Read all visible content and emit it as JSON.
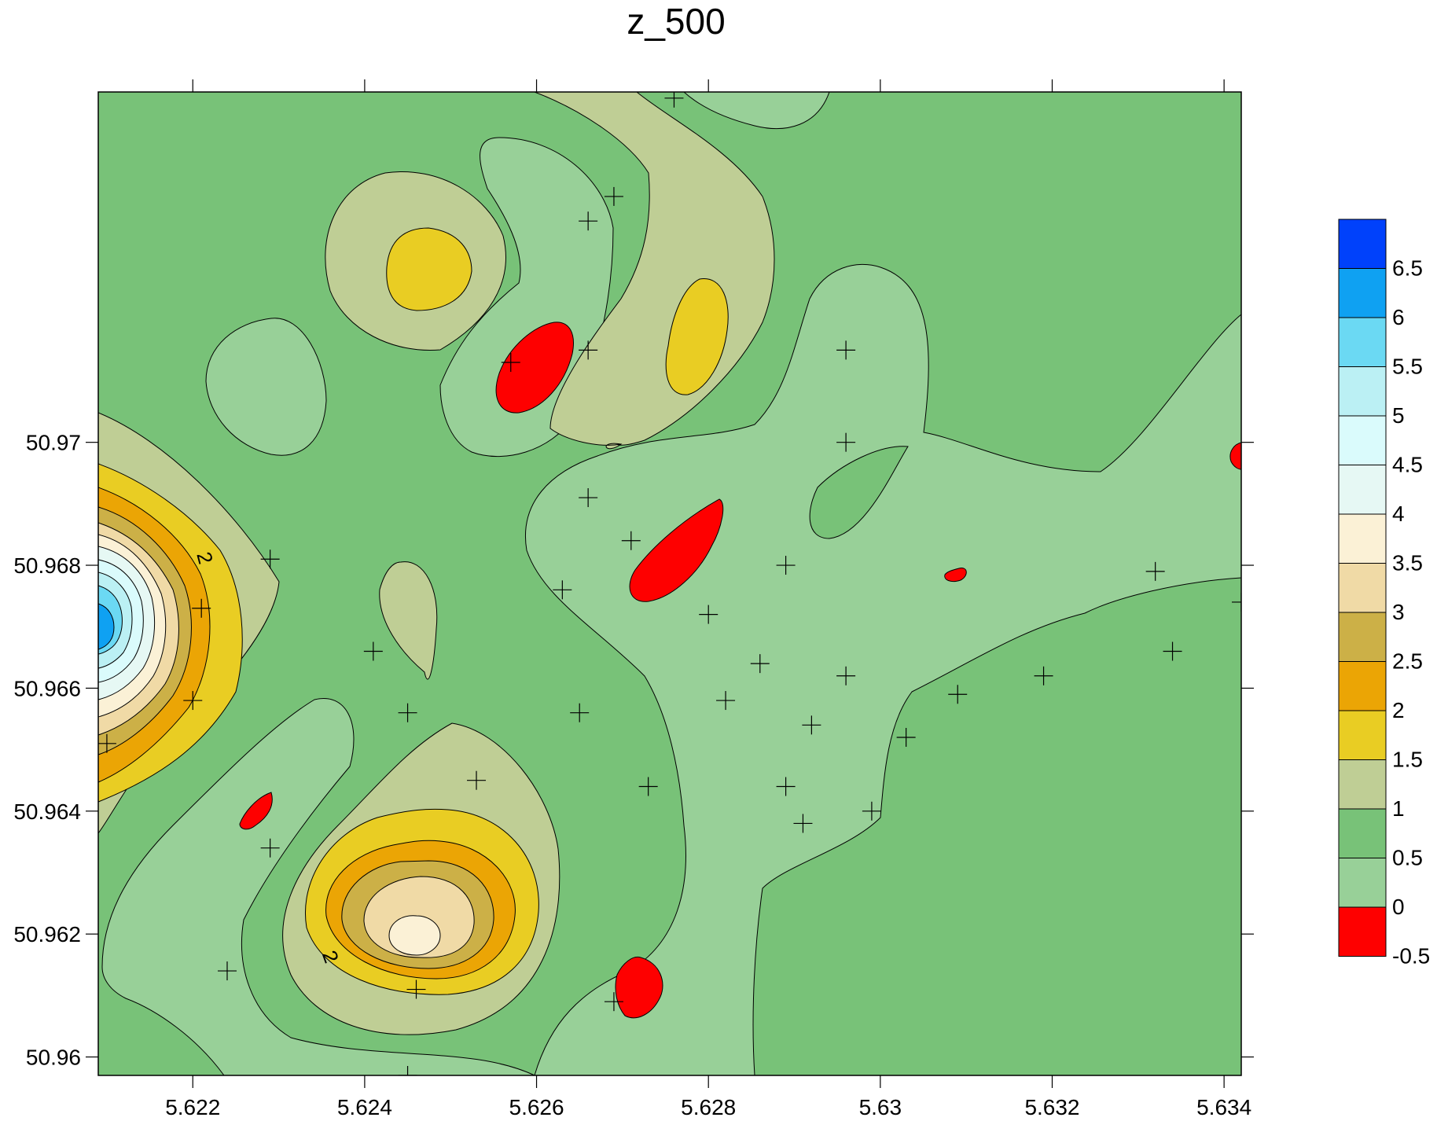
{
  "chart_data": {
    "type": "contour",
    "title": "z_500",
    "xlabel": "",
    "ylabel": "",
    "xlim": [
      5.6209,
      5.6342
    ],
    "ylim": [
      50.9597,
      50.9757
    ],
    "x_ticks": [
      5.622,
      5.624,
      5.626,
      5.628,
      5.63,
      5.632,
      5.634
    ],
    "x_tick_labels": [
      "5.622",
      "5.624",
      "5.626",
      "5.628",
      "5.63",
      "5.632",
      "5.634"
    ],
    "y_ticks": [
      50.96,
      50.962,
      50.964,
      50.966,
      50.968,
      50.97
    ],
    "y_tick_labels": [
      "50.96",
      "50.962",
      "50.964",
      "50.966",
      "50.968",
      "50.97"
    ],
    "grid": false,
    "legend": {
      "position": "right",
      "levels": [
        -0.5,
        0,
        0.5,
        1,
        1.5,
        2,
        2.5,
        3,
        3.5,
        4,
        4.5,
        5,
        5.5,
        6,
        6.5
      ],
      "labels": [
        "-0.5",
        "0",
        "0.5",
        "1",
        "1.5",
        "2",
        "2.5",
        "3",
        "3.5",
        "4",
        "4.5",
        "5",
        "5.5",
        "6",
        "6.5"
      ],
      "colors": [
        "#fe0000",
        "#98d098",
        "#78c278",
        "#bfce95",
        "#e9cd23",
        "#eba505",
        "#ccb047",
        "#f0daa6",
        "#fbf1d6",
        "#e6f8f4",
        "#dafbfc",
        "#bbf0f4",
        "#6bd9f3",
        "#0fa1f2",
        "#0041fb"
      ]
    },
    "contour_labels": [
      "2",
      "2"
    ],
    "sample_points": [
      [
        5.6269,
        50.974
      ],
      [
        5.6266,
        50.9736
      ],
      [
        5.6257,
        50.9713
      ],
      [
        5.6266,
        50.9715
      ],
      [
        5.6266,
        50.9691
      ],
      [
        5.6271,
        50.9684
      ],
      [
        5.6263,
        50.9676
      ],
      [
        5.6229,
        50.9681
      ],
      [
        5.6296,
        50.9715
      ],
      [
        5.6296,
        50.97
      ],
      [
        5.6289,
        50.968
      ],
      [
        5.628,
        50.9672
      ],
      [
        5.6221,
        50.9673
      ],
      [
        5.6241,
        50.9666
      ],
      [
        5.6286,
        50.9664
      ],
      [
        5.6296,
        50.9662
      ],
      [
        5.6319,
        50.9662
      ],
      [
        5.6334,
        50.9666
      ],
      [
        5.6332,
        50.9679
      ],
      [
        5.6342,
        50.9674
      ],
      [
        5.622,
        50.9658
      ],
      [
        5.6245,
        50.9656
      ],
      [
        5.6265,
        50.9656
      ],
      [
        5.6282,
        50.9658
      ],
      [
        5.6309,
        50.9659
      ],
      [
        5.6292,
        50.9654
      ],
      [
        5.6303,
        50.9652
      ],
      [
        5.621,
        50.9651
      ],
      [
        5.6253,
        50.9645
      ],
      [
        5.6273,
        50.9644
      ],
      [
        5.6289,
        50.9644
      ],
      [
        5.6299,
        50.964
      ],
      [
        5.6291,
        50.9638
      ],
      [
        5.6229,
        50.9634
      ],
      [
        5.6224,
        50.9614
      ],
      [
        5.6246,
        50.9611
      ],
      [
        5.6269,
        50.9609
      ],
      [
        5.6245,
        50.9597
      ],
      [
        5.6276,
        50.9756
      ]
    ]
  }
}
